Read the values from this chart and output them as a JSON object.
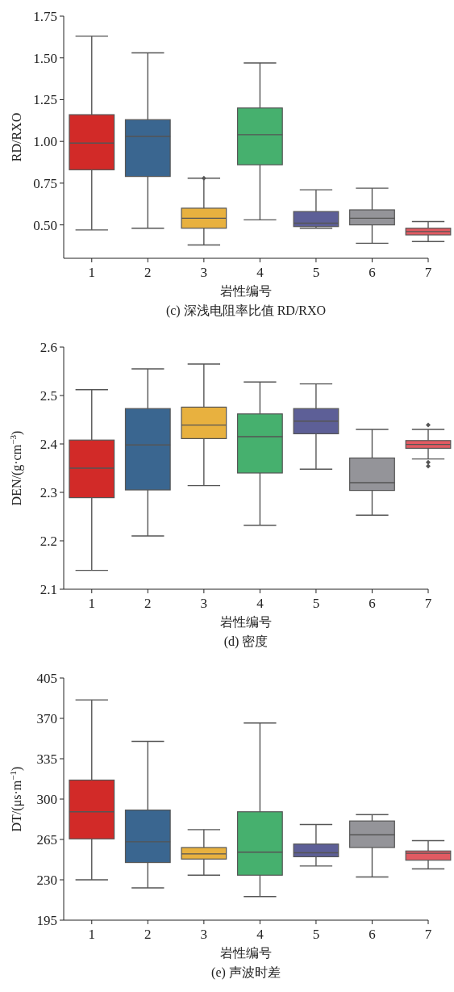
{
  "chart_data": [
    {
      "type": "box",
      "title": "(c) 深浅电阻率比值 RD/RXO",
      "xlabel": "岩性编号",
      "ylabel": "RD/RXO",
      "categories": [
        "1",
        "2",
        "3",
        "4",
        "5",
        "6",
        "7"
      ],
      "ylim": [
        0.3,
        1.75
      ],
      "yticks": [
        {
          "value": 0.5,
          "label": "0.50"
        },
        {
          "value": 0.75,
          "label": "0.75"
        },
        {
          "value": 1.0,
          "label": "1.00"
        },
        {
          "value": 1.25,
          "label": "1.25"
        },
        {
          "value": 1.5,
          "label": "1.50"
        },
        {
          "value": 1.75,
          "label": "1.75"
        }
      ],
      "colors": [
        "#d22a28",
        "#3a6690",
        "#e8b13f",
        "#46b06e",
        "#5d5f97",
        "#949499",
        "#e25a62"
      ],
      "boxes": [
        {
          "low": 0.47,
          "q1": 0.83,
          "median": 0.99,
          "q3": 1.16,
          "high": 1.63
        },
        {
          "low": 0.48,
          "q1": 0.79,
          "median": 1.03,
          "q3": 1.13,
          "high": 1.53
        },
        {
          "low": 0.38,
          "q1": 0.48,
          "median": 0.54,
          "q3": 0.6,
          "high": 0.78,
          "outliers": [
            0.78
          ]
        },
        {
          "low": 0.53,
          "q1": 0.86,
          "median": 1.04,
          "q3": 1.2,
          "high": 1.47
        },
        {
          "low": 0.48,
          "q1": 0.49,
          "median": 0.51,
          "q3": 0.58,
          "high": 0.71
        },
        {
          "low": 0.39,
          "q1": 0.5,
          "median": 0.54,
          "q3": 0.59,
          "high": 0.72
        },
        {
          "low": 0.4,
          "q1": 0.44,
          "median": 0.46,
          "q3": 0.48,
          "high": 0.52
        }
      ]
    },
    {
      "type": "box",
      "title": "(d) 密度",
      "xlabel": "岩性编号",
      "ylabel": "DEN/(g·cm$^{−3}$)",
      "categories": [
        "1",
        "2",
        "3",
        "4",
        "5",
        "6",
        "7"
      ],
      "ylim": [
        2.1,
        2.6
      ],
      "yticks": [
        2.1,
        2.2,
        2.3,
        2.4,
        2.5,
        2.6
      ],
      "colors": [
        "#d22a28",
        "#3a6690",
        "#e8b13f",
        "#46b06e",
        "#5d5f97",
        "#949499",
        "#e25a62"
      ],
      "boxes": [
        {
          "low": 2.139,
          "q1": 2.289,
          "median": 2.35,
          "q3": 2.408,
          "high": 2.512
        },
        {
          "low": 2.21,
          "q1": 2.305,
          "median": 2.398,
          "q3": 2.473,
          "high": 2.555
        },
        {
          "low": 2.314,
          "q1": 2.411,
          "median": 2.439,
          "q3": 2.476,
          "high": 2.565
        },
        {
          "low": 2.232,
          "q1": 2.34,
          "median": 2.415,
          "q3": 2.462,
          "high": 2.528
        },
        {
          "low": 2.348,
          "q1": 2.421,
          "median": 2.447,
          "q3": 2.473,
          "high": 2.524
        },
        {
          "low": 2.253,
          "q1": 2.304,
          "median": 2.32,
          "q3": 2.371,
          "high": 2.43
        },
        {
          "low": 2.369,
          "q1": 2.391,
          "median": 2.399,
          "q3": 2.407,
          "high": 2.43,
          "outliers": [
            2.439,
            2.362,
            2.354
          ]
        }
      ]
    },
    {
      "type": "box",
      "title": "(e) 声波时差",
      "xlabel": "岩性编号",
      "ylabel": "DT/(μs·m$^{−1}$)",
      "categories": [
        "1",
        "2",
        "3",
        "4",
        "5",
        "6",
        "7"
      ],
      "ylim": [
        195,
        405
      ],
      "yticks": [
        195,
        230,
        265,
        300,
        335,
        370,
        405
      ],
      "colors": [
        "#d22a28",
        "#3a6690",
        "#e8b13f",
        "#46b06e",
        "#5d5f97",
        "#949499",
        "#e25a62"
      ],
      "boxes": [
        {
          "low": 230,
          "q1": 265.5,
          "median": 289,
          "q3": 316.5,
          "high": 386
        },
        {
          "low": 223,
          "q1": 245,
          "median": 263,
          "q3": 290.5,
          "high": 350
        },
        {
          "low": 234,
          "q1": 248,
          "median": 252.5,
          "q3": 258,
          "high": 273.5
        },
        {
          "low": 215.5,
          "q1": 234,
          "median": 254,
          "q3": 289,
          "high": 366
        },
        {
          "low": 242,
          "q1": 250,
          "median": 253.5,
          "q3": 261,
          "high": 278
        },
        {
          "low": 232.5,
          "q1": 258,
          "median": 269,
          "q3": 281,
          "high": 286.5
        },
        {
          "low": 239.5,
          "q1": 247,
          "median": 253,
          "q3": 255,
          "high": 264
        }
      ]
    }
  ]
}
